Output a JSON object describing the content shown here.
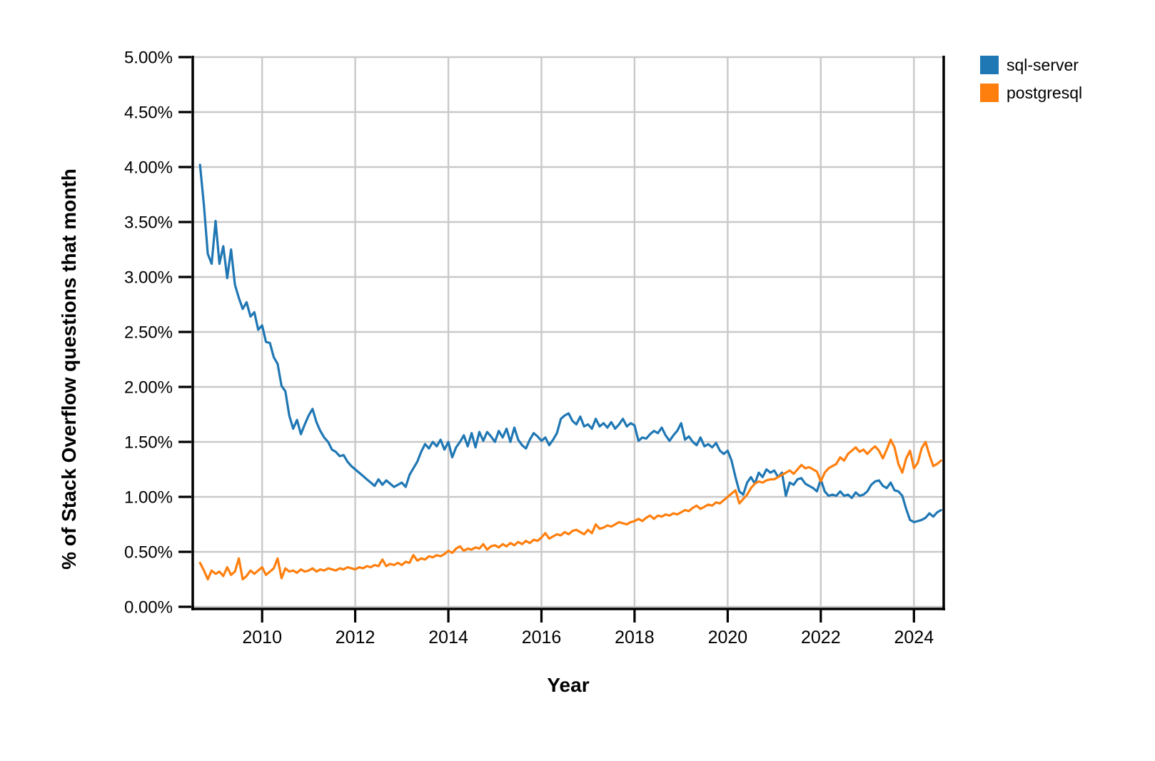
{
  "legend": {
    "items": [
      {
        "label": "sql-server",
        "color": "#1f77b4"
      },
      {
        "label": "postgresql",
        "color": "#ff7f0e"
      }
    ]
  },
  "chart_data": {
    "type": "line",
    "title": "",
    "xlabel": "Year",
    "ylabel": "% of Stack Overflow questions that month",
    "x_unit": "year (monthly samples)",
    "x_start": 2008.6667,
    "x_step": 0.0833333,
    "xlim": [
      2008.51,
      2024.64
    ],
    "ylim": [
      0,
      5
    ],
    "grid": true,
    "grid_color": "#c9c9c9",
    "axis_color": "#000000",
    "legend_position": "top-right-outside",
    "x_ticks": {
      "values": [
        2010,
        2012,
        2014,
        2016,
        2018,
        2020,
        2022,
        2024
      ],
      "labels": [
        "2010",
        "2012",
        "2014",
        "2016",
        "2018",
        "2020",
        "2022",
        "2024"
      ]
    },
    "y_ticks": {
      "values": [
        0,
        0.5,
        1,
        1.5,
        2,
        2.5,
        3,
        3.5,
        4,
        4.5,
        5
      ],
      "labels": [
        "0.00%",
        "0.50%",
        "1.00%",
        "1.50%",
        "2.00%",
        "2.50%",
        "3.00%",
        "3.50%",
        "4.00%",
        "4.50%",
        "5.00%"
      ]
    },
    "series": [
      {
        "name": "sql-server",
        "color": "#1f77b4",
        "values": [
          4.02,
          3.65,
          3.21,
          3.12,
          3.51,
          3.12,
          3.28,
          2.99,
          3.25,
          2.93,
          2.81,
          2.71,
          2.77,
          2.64,
          2.68,
          2.52,
          2.56,
          2.41,
          2.4,
          2.27,
          2.21,
          2.01,
          1.96,
          1.74,
          1.62,
          1.7,
          1.57,
          1.66,
          1.74,
          1.8,
          1.68,
          1.6,
          1.54,
          1.5,
          1.43,
          1.41,
          1.37,
          1.38,
          1.32,
          1.28,
          1.25,
          1.22,
          1.19,
          1.16,
          1.13,
          1.1,
          1.16,
          1.11,
          1.15,
          1.12,
          1.09,
          1.11,
          1.13,
          1.09,
          1.2,
          1.26,
          1.32,
          1.41,
          1.48,
          1.44,
          1.5,
          1.46,
          1.52,
          1.43,
          1.5,
          1.36,
          1.45,
          1.5,
          1.56,
          1.46,
          1.58,
          1.45,
          1.59,
          1.51,
          1.59,
          1.55,
          1.5,
          1.6,
          1.54,
          1.62,
          1.5,
          1.63,
          1.52,
          1.47,
          1.44,
          1.52,
          1.58,
          1.55,
          1.51,
          1.54,
          1.47,
          1.52,
          1.58,
          1.71,
          1.74,
          1.76,
          1.69,
          1.66,
          1.73,
          1.64,
          1.66,
          1.62,
          1.71,
          1.64,
          1.67,
          1.63,
          1.68,
          1.62,
          1.66,
          1.71,
          1.64,
          1.67,
          1.65,
          1.51,
          1.54,
          1.53,
          1.57,
          1.6,
          1.58,
          1.63,
          1.56,
          1.51,
          1.56,
          1.6,
          1.67,
          1.52,
          1.55,
          1.5,
          1.47,
          1.54,
          1.46,
          1.48,
          1.45,
          1.49,
          1.42,
          1.39,
          1.42,
          1.33,
          1.18,
          1.05,
          1.02,
          1.13,
          1.18,
          1.12,
          1.22,
          1.18,
          1.25,
          1.22,
          1.24,
          1.18,
          1.22,
          1.01,
          1.13,
          1.11,
          1.16,
          1.17,
          1.12,
          1.1,
          1.08,
          1.05,
          1.16,
          1.05,
          1.01,
          1.02,
          1.01,
          1.05,
          1.01,
          1.02,
          0.99,
          1.04,
          1.01,
          1.02,
          1.05,
          1.11,
          1.14,
          1.15,
          1.1,
          1.08,
          1.13,
          1.06,
          1.05,
          1.01,
          0.89,
          0.79,
          0.77,
          0.78,
          0.79,
          0.81,
          0.85,
          0.82,
          0.86,
          0.88
        ]
      },
      {
        "name": "postgresql",
        "color": "#ff7f0e",
        "values": [
          0.4,
          0.33,
          0.25,
          0.33,
          0.3,
          0.32,
          0.28,
          0.36,
          0.29,
          0.32,
          0.44,
          0.25,
          0.28,
          0.33,
          0.3,
          0.33,
          0.36,
          0.29,
          0.32,
          0.35,
          0.44,
          0.26,
          0.35,
          0.32,
          0.33,
          0.31,
          0.34,
          0.32,
          0.33,
          0.35,
          0.32,
          0.34,
          0.33,
          0.35,
          0.34,
          0.33,
          0.35,
          0.34,
          0.36,
          0.35,
          0.34,
          0.36,
          0.35,
          0.37,
          0.36,
          0.38,
          0.37,
          0.43,
          0.37,
          0.39,
          0.38,
          0.4,
          0.38,
          0.41,
          0.4,
          0.47,
          0.42,
          0.44,
          0.43,
          0.46,
          0.45,
          0.47,
          0.46,
          0.48,
          0.51,
          0.49,
          0.53,
          0.55,
          0.51,
          0.53,
          0.52,
          0.54,
          0.53,
          0.57,
          0.52,
          0.55,
          0.56,
          0.54,
          0.57,
          0.55,
          0.58,
          0.56,
          0.59,
          0.57,
          0.6,
          0.58,
          0.61,
          0.6,
          0.63,
          0.67,
          0.62,
          0.64,
          0.66,
          0.65,
          0.68,
          0.66,
          0.69,
          0.7,
          0.68,
          0.66,
          0.7,
          0.67,
          0.75,
          0.71,
          0.72,
          0.74,
          0.73,
          0.75,
          0.77,
          0.76,
          0.75,
          0.77,
          0.78,
          0.8,
          0.78,
          0.81,
          0.83,
          0.8,
          0.83,
          0.82,
          0.84,
          0.83,
          0.85,
          0.84,
          0.86,
          0.88,
          0.87,
          0.9,
          0.92,
          0.89,
          0.91,
          0.93,
          0.92,
          0.95,
          0.94,
          0.97,
          1.0,
          1.03,
          1.06,
          0.94,
          0.98,
          1.02,
          1.08,
          1.12,
          1.14,
          1.13,
          1.15,
          1.16,
          1.16,
          1.18,
          1.2,
          1.22,
          1.24,
          1.21,
          1.25,
          1.29,
          1.26,
          1.27,
          1.25,
          1.23,
          1.14,
          1.22,
          1.26,
          1.28,
          1.3,
          1.36,
          1.33,
          1.39,
          1.42,
          1.45,
          1.41,
          1.43,
          1.39,
          1.43,
          1.46,
          1.42,
          1.35,
          1.43,
          1.52,
          1.45,
          1.3,
          1.22,
          1.35,
          1.42,
          1.26,
          1.31,
          1.44,
          1.5,
          1.38,
          1.28,
          1.3,
          1.33
        ]
      }
    ]
  }
}
